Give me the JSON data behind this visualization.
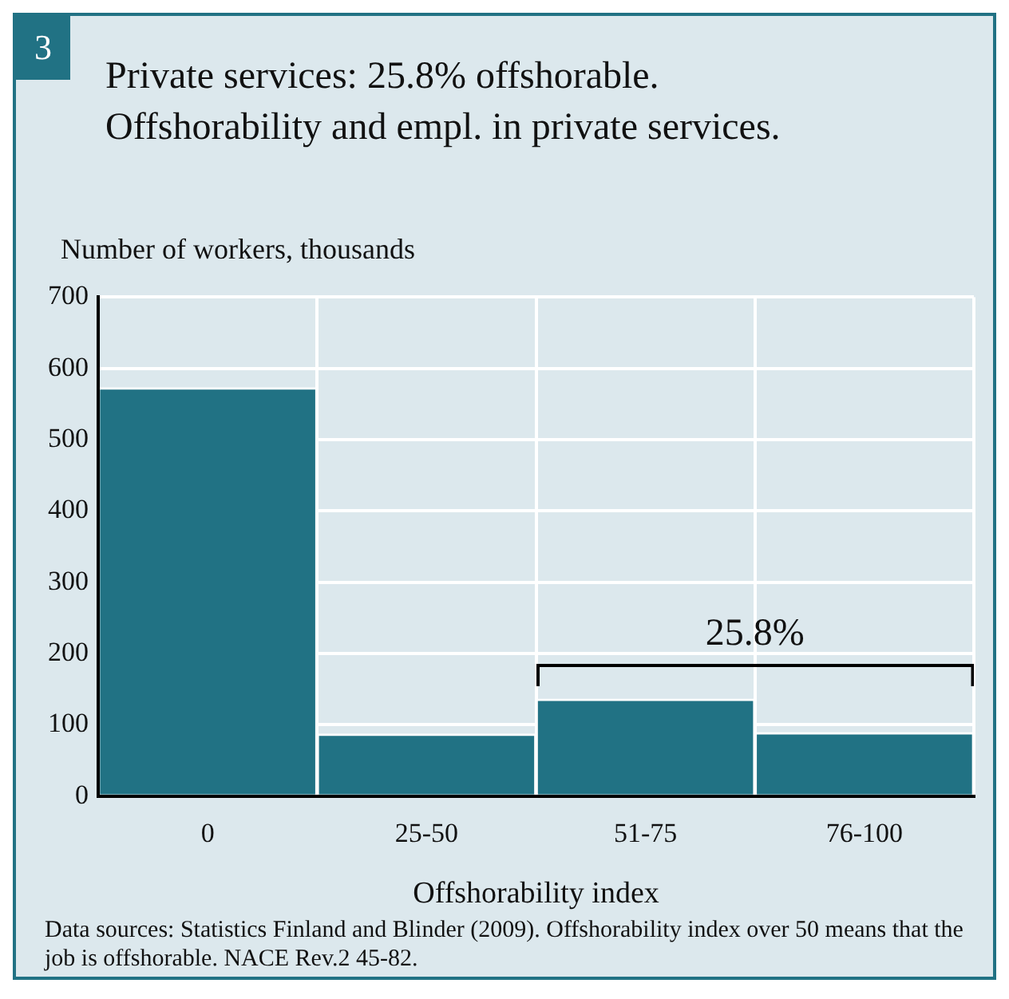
{
  "chart_data": {
    "type": "bar",
    "title": "Private services: 25.8% offshorable.\nOffshorability and empl. in private services.",
    "ylabel": "Number of workers, thousands",
    "xlabel": "Offshorability index",
    "categories": [
      "0",
      "25-50",
      "51-75",
      "76-100"
    ],
    "values": [
      573,
      87,
      136,
      89
    ],
    "color": "#217284",
    "ylim": [
      0,
      700
    ],
    "yticks": [
      0,
      100,
      200,
      300,
      400,
      500,
      600,
      700
    ],
    "grid": true,
    "legend": false,
    "annotations": [
      "3",
      "25.8%",
      "Data sources: Statistics Finland and Blinder (2009). Offshorability index over 50 means that the job is offshorable. NACE Rev.2 45-82."
    ]
  }
}
